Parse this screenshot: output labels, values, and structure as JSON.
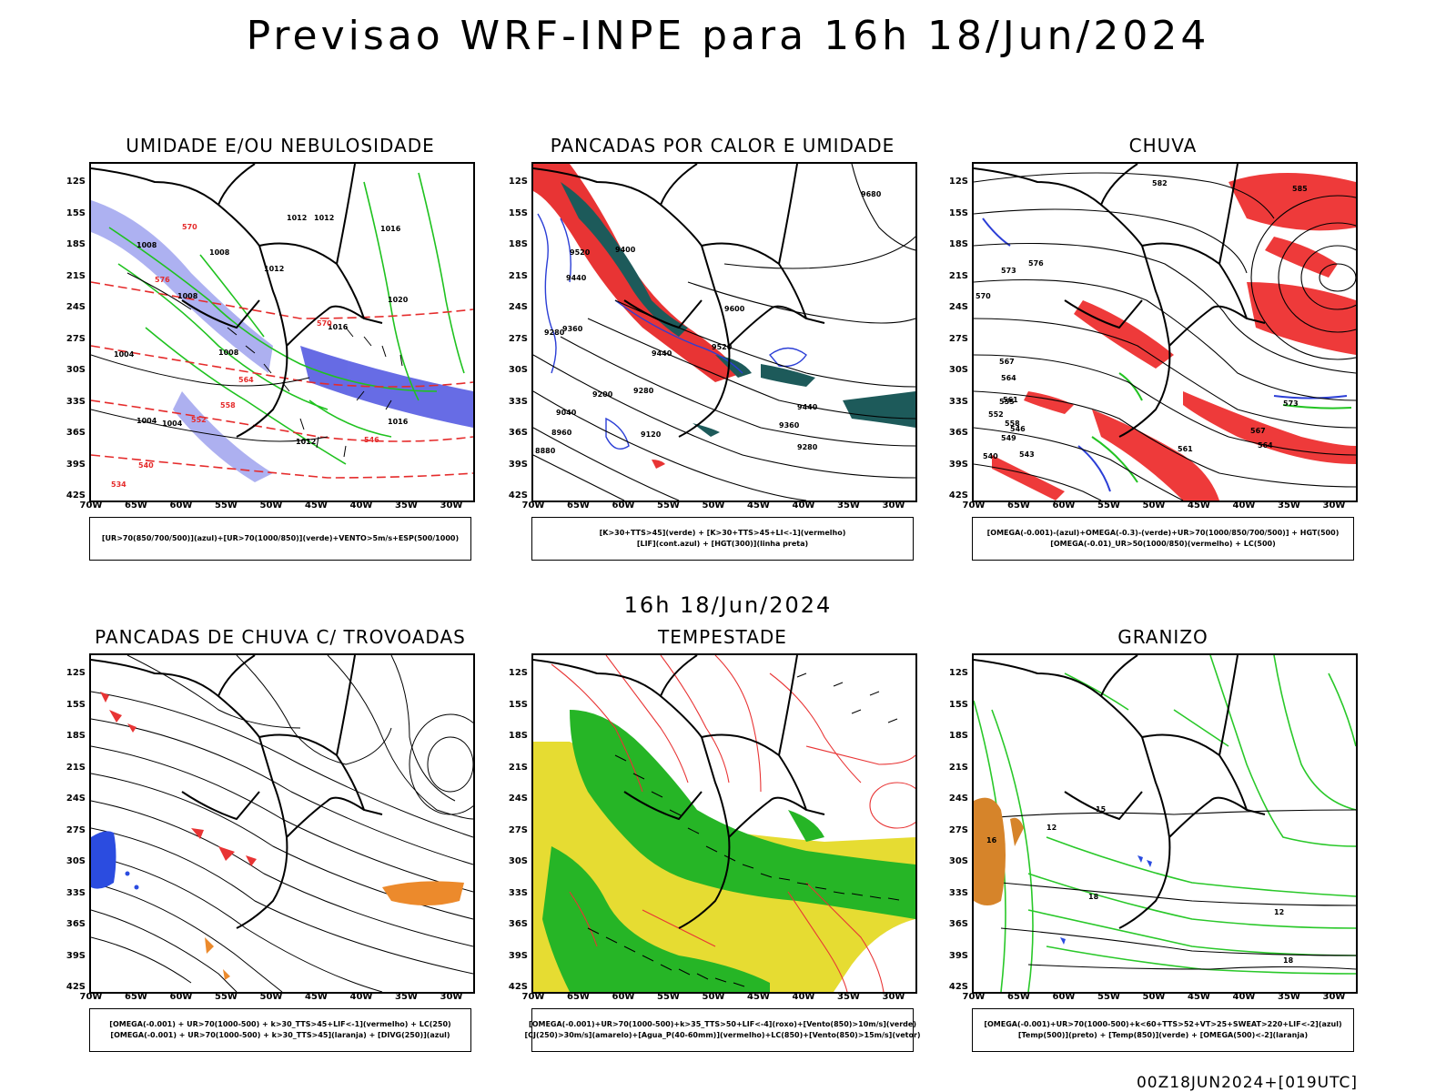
{
  "header": {
    "title": "Previsao WRF-INPE  para 16h 18/Jun/2024"
  },
  "middle": {
    "title": "16h 18/Jun/2024"
  },
  "footer": {
    "run": "00Z18JUN2024+[019UTC]"
  },
  "axes": {
    "lat_labels": [
      "12S",
      "15S",
      "18S",
      "21S",
      "24S",
      "27S",
      "30S",
      "33S",
      "36S",
      "39S",
      "42S"
    ],
    "lon_labels": [
      "70W",
      "65W",
      "60W",
      "55W",
      "50W",
      "45W",
      "40W",
      "35W",
      "30W"
    ]
  },
  "panels": [
    {
      "title": "UMIDADE E/OU NEBULOSIDADE",
      "legend": [
        "[UR>70(850/700/500)](azul)+[UR>70(1000/850)](verde)+VENTO>5m/s+ESP(500/1000)"
      ]
    },
    {
      "title": "PANCADAS POR CALOR E UMIDADE",
      "legend": [
        "[K>30+TTS>45](verde) + [K>30+TTS>45+LI<-1](vermelho)",
        "[LIF](cont.azul) + [HGT(300)](linha preta)"
      ]
    },
    {
      "title": "CHUVA",
      "legend": [
        "[OMEGA(-0.001)-(azul)+OMEGA(-0.3)-(verde)+UR>70(1000/850/700/500)] + HGT(500)",
        "[OMEGA(-0.01)_UR>50(1000/850)(vermelho) + LC(500)"
      ]
    },
    {
      "title": "PANCADAS DE CHUVA C/ TROVOADAS",
      "legend": [
        "[OMEGA(-0.001) + UR>70(1000-500) + k>30_TTS>45+LIF<-1](vermelho) + LC(250)",
        "[OMEGA(-0.001) + UR>70(1000-500) + k>30_TTS>45](laranja) + [DIVG(250)](azul)"
      ]
    },
    {
      "title": "TEMPESTADE",
      "legend": [
        "[OMEGA(-0.001)+UR>70(1000-500)+k>35_TTS>50+LIF<-4](roxo)+[Vento(850)>10m/s](verde)",
        "[CJ(250)>30m/s](amarelo)+[Agua_P(40-60mm)](vermelho)+LC(850)+[Vento(850)>15m/s](vetor)"
      ]
    },
    {
      "title": "GRANIZO",
      "legend": [
        "[OMEGA(-0.001)+UR>70(1000-500)+k<60+TTS>52+VT>25+SWEAT>220+LIF<-2](azul)",
        "[Temp(500)](preto) + [Temp(850)](verde) + [OMEGA(500)<-2](laranja)"
      ]
    }
  ],
  "contour_labels": {
    "p1": [
      "1012",
      "1012",
      "1008",
      "1008",
      "1012",
      "1016",
      "1020",
      "1016",
      "1004",
      "1008",
      "1008",
      "1004",
      "1004",
      "1012",
      "1016",
      "570",
      "576",
      "570",
      "564",
      "558",
      "552",
      "546",
      "540",
      "534"
    ],
    "p2": [
      "9680",
      "9520",
      "9440",
      "9400",
      "9360",
      "9280",
      "9200",
      "9040",
      "8960",
      "8880",
      "9280",
      "9120",
      "9440",
      "9520",
      "9600",
      "9440",
      "9360",
      "9280"
    ],
    "p3": [
      "582",
      "585",
      "576",
      "573",
      "570",
      "567",
      "564",
      "561",
      "558",
      "555",
      "552",
      "549",
      "546",
      "543",
      "540",
      "573",
      "567",
      "564",
      "561"
    ],
    "p6": [
      "12",
      "15",
      "18",
      "12",
      "16",
      "18"
    ]
  }
}
